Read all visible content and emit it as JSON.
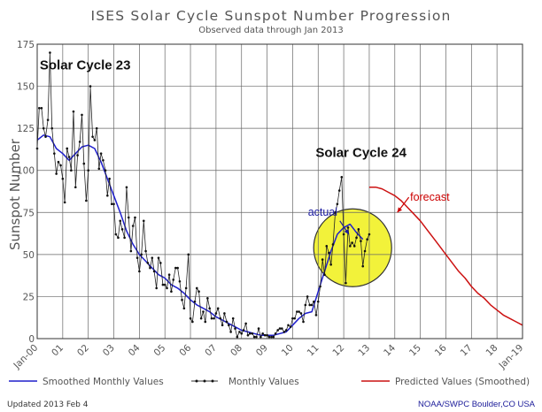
{
  "chart_data": {
    "type": "line",
    "title": "ISES Solar Cycle Sunspot Number Progression",
    "subtitle": "Observed data through Jan 2013",
    "ylabel": "Sunspot Number",
    "xlabel": "",
    "xlim": [
      2000.0,
      2019.0
    ],
    "ylim": [
      0,
      175
    ],
    "y_ticks": [
      0,
      25,
      50,
      75,
      100,
      125,
      150,
      175
    ],
    "x_ticks": [
      {
        "x": 2000,
        "label": "Jan-00"
      },
      {
        "x": 2001,
        "label": "01"
      },
      {
        "x": 2002,
        "label": "02"
      },
      {
        "x": 2003,
        "label": "03"
      },
      {
        "x": 2004,
        "label": "04"
      },
      {
        "x": 2005,
        "label": "05"
      },
      {
        "x": 2006,
        "label": "06"
      },
      {
        "x": 2007,
        "label": "07"
      },
      {
        "x": 2008,
        "label": "08"
      },
      {
        "x": 2009,
        "label": "09"
      },
      {
        "x": 2010,
        "label": "10"
      },
      {
        "x": 2011,
        "label": "11"
      },
      {
        "x": 2012,
        "label": "12"
      },
      {
        "x": 2013,
        "label": "13"
      },
      {
        "x": 2014,
        "label": "14"
      },
      {
        "x": 2015,
        "label": "15"
      },
      {
        "x": 2016,
        "label": "16"
      },
      {
        "x": 2017,
        "label": "17"
      },
      {
        "x": 2018,
        "label": "18"
      },
      {
        "x": 2019,
        "label": "Jan-19"
      }
    ],
    "grid": true,
    "legend_position": "bottom",
    "series": [
      {
        "name": "Smoothed Monthly Values",
        "color": "#1f1fcc",
        "style": "line",
        "x": [
          2000.0,
          2000.25,
          2000.5,
          2000.75,
          2001.0,
          2001.25,
          2001.5,
          2001.75,
          2002.0,
          2002.25,
          2002.5,
          2002.75,
          2003.0,
          2003.25,
          2003.5,
          2003.75,
          2004.0,
          2004.25,
          2004.5,
          2004.75,
          2005.0,
          2005.25,
          2005.5,
          2005.75,
          2006.0,
          2006.25,
          2006.5,
          2006.75,
          2007.0,
          2007.25,
          2007.5,
          2007.75,
          2008.0,
          2008.25,
          2008.5,
          2008.75,
          2009.0,
          2009.25,
          2009.5,
          2009.75,
          2010.0,
          2010.25,
          2010.5,
          2010.75,
          2011.0,
          2011.25,
          2011.5,
          2011.75,
          2012.0,
          2012.25,
          2012.5,
          2012.75
        ],
        "values": [
          118,
          121,
          120,
          113,
          110,
          106,
          110,
          114,
          115,
          113,
          105,
          95,
          85,
          75,
          64,
          56,
          50,
          46,
          42,
          38,
          36,
          32,
          30,
          27,
          23,
          20,
          18,
          16,
          13,
          11,
          9,
          7,
          5,
          4,
          3,
          2,
          2,
          2,
          3,
          4,
          8,
          12,
          15,
          16,
          28,
          40,
          52,
          62,
          66,
          68,
          63,
          59
        ]
      },
      {
        "name": "Monthly Values",
        "color": "#222222",
        "style": "line-dots",
        "x": [
          2000.0,
          2000.08,
          2000.17,
          2000.25,
          2000.33,
          2000.42,
          2000.5,
          2000.58,
          2000.67,
          2000.75,
          2000.83,
          2000.92,
          2001.0,
          2001.08,
          2001.17,
          2001.25,
          2001.33,
          2001.42,
          2001.5,
          2001.58,
          2001.67,
          2001.75,
          2001.83,
          2001.92,
          2002.0,
          2002.08,
          2002.17,
          2002.25,
          2002.33,
          2002.42,
          2002.5,
          2002.58,
          2002.67,
          2002.75,
          2002.83,
          2002.92,
          2003.0,
          2003.08,
          2003.17,
          2003.25,
          2003.33,
          2003.42,
          2003.5,
          2003.58,
          2003.67,
          2003.75,
          2003.83,
          2003.92,
          2004.0,
          2004.08,
          2004.17,
          2004.25,
          2004.33,
          2004.42,
          2004.5,
          2004.58,
          2004.67,
          2004.75,
          2004.83,
          2004.92,
          2005.0,
          2005.08,
          2005.17,
          2005.25,
          2005.33,
          2005.42,
          2005.5,
          2005.58,
          2005.67,
          2005.75,
          2005.83,
          2005.92,
          2006.0,
          2006.08,
          2006.17,
          2006.25,
          2006.33,
          2006.42,
          2006.5,
          2006.58,
          2006.67,
          2006.75,
          2006.83,
          2006.92,
          2007.0,
          2007.08,
          2007.17,
          2007.25,
          2007.33,
          2007.42,
          2007.5,
          2007.58,
          2007.67,
          2007.75,
          2007.83,
          2007.92,
          2008.0,
          2008.08,
          2008.17,
          2008.25,
          2008.33,
          2008.42,
          2008.5,
          2008.58,
          2008.67,
          2008.75,
          2008.83,
          2008.92,
          2009.0,
          2009.08,
          2009.17,
          2009.25,
          2009.33,
          2009.42,
          2009.5,
          2009.58,
          2009.67,
          2009.75,
          2009.83,
          2009.92,
          2010.0,
          2010.08,
          2010.17,
          2010.25,
          2010.33,
          2010.42,
          2010.5,
          2010.58,
          2010.67,
          2010.75,
          2010.83,
          2010.92,
          2011.0,
          2011.08,
          2011.17,
          2011.25,
          2011.33,
          2011.42,
          2011.5,
          2011.58,
          2011.67,
          2011.75,
          2011.83,
          2011.92,
          2012.0,
          2012.08,
          2012.17,
          2012.25,
          2012.33,
          2012.42,
          2012.5,
          2012.58,
          2012.67,
          2012.75,
          2012.83,
          2012.92,
          2013.0
        ],
        "values": [
          113,
          137,
          137,
          125,
          120,
          130,
          170,
          125,
          110,
          98,
          105,
          103,
          95,
          81,
          113,
          108,
          100,
          135,
          90,
          109,
          117,
          133,
          104,
          82,
          100,
          150,
          120,
          118,
          125,
          101,
          110,
          106,
          100,
          85,
          95,
          80,
          80,
          62,
          60,
          70,
          65,
          60,
          90,
          72,
          52,
          67,
          72,
          48,
          40,
          50,
          70,
          52,
          45,
          42,
          48,
          40,
          30,
          48,
          45,
          32,
          32,
          30,
          38,
          28,
          35,
          42,
          42,
          34,
          23,
          18,
          30,
          50,
          12,
          10,
          22,
          30,
          28,
          12,
          16,
          10,
          24,
          18,
          12,
          12,
          15,
          18,
          12,
          8,
          15,
          10,
          8,
          4,
          12,
          6,
          1,
          4,
          3,
          5,
          9,
          2,
          3,
          3,
          1,
          1,
          6,
          1,
          3,
          2,
          2,
          1,
          1,
          1,
          3,
          5,
          6,
          6,
          4,
          5,
          8,
          7,
          12,
          12,
          16,
          16,
          15,
          10,
          20,
          25,
          20,
          20,
          22,
          14,
          22,
          31,
          47,
          38,
          55,
          51,
          44,
          56,
          75,
          80,
          88,
          96,
          62,
          33,
          66,
          55,
          57,
          55,
          60,
          65,
          58,
          43,
          52,
          59,
          62
        ]
      },
      {
        "name": "Predicted Values (Smoothed)",
        "color": "#cc1111",
        "style": "line",
        "x": [
          2013.0,
          2013.25,
          2013.5,
          2013.75,
          2014.0,
          2014.25,
          2014.5,
          2014.75,
          2015.0,
          2015.25,
          2015.5,
          2015.75,
          2016.0,
          2016.25,
          2016.5,
          2016.75,
          2017.0,
          2017.25,
          2017.5,
          2017.75,
          2018.0,
          2018.25,
          2018.5,
          2018.75,
          2019.0
        ],
        "values": [
          90,
          90,
          89,
          87,
          85,
          82,
          78,
          74,
          70,
          65,
          60,
          55,
          50,
          45,
          40,
          36,
          31,
          27,
          24,
          20,
          17,
          14,
          12,
          10,
          8
        ]
      }
    ],
    "annotations": [
      {
        "text": "Solar Cycle 23",
        "x": 2000.1,
        "y": 160
      },
      {
        "text": "Solar Cycle 24",
        "x": 2010.9,
        "y": 108
      },
      {
        "text": "actual",
        "x": 2010.6,
        "y": 73
      },
      {
        "text": "forecast",
        "x": 2014.6,
        "y": 82
      }
    ],
    "highlight_circle": {
      "cx": 2012.35,
      "cy": 54,
      "color": "#f2f23a"
    }
  },
  "legend": {
    "smoothed_label": "Smoothed Monthly Values",
    "monthly_label": "Monthly Values",
    "predicted_label": "Predicted Values (Smoothed)"
  },
  "footer": {
    "updated": "Updated 2013 Feb  4",
    "source": "NOAA/SWPC Boulder,CO USA"
  }
}
